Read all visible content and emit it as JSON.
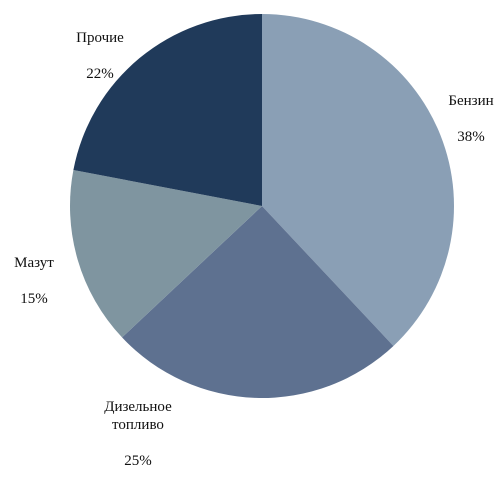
{
  "chart_data": {
    "type": "pie",
    "title": "",
    "start_angle": "12 o'clock",
    "direction": "clockwise",
    "slices": [
      {
        "label": "Бензин",
        "value": 38,
        "value_label": "38%",
        "color": "#8a9fb5"
      },
      {
        "label": "Дизельное топливо",
        "value": 25,
        "value_label": "25%",
        "color": "#5e7190"
      },
      {
        "label": "Мазут",
        "value": 15,
        "value_label": "15%",
        "color": "#7f95a0"
      },
      {
        "label": "Прочие",
        "value": 22,
        "value_label": "22%",
        "color": "#203a5a"
      }
    ]
  }
}
